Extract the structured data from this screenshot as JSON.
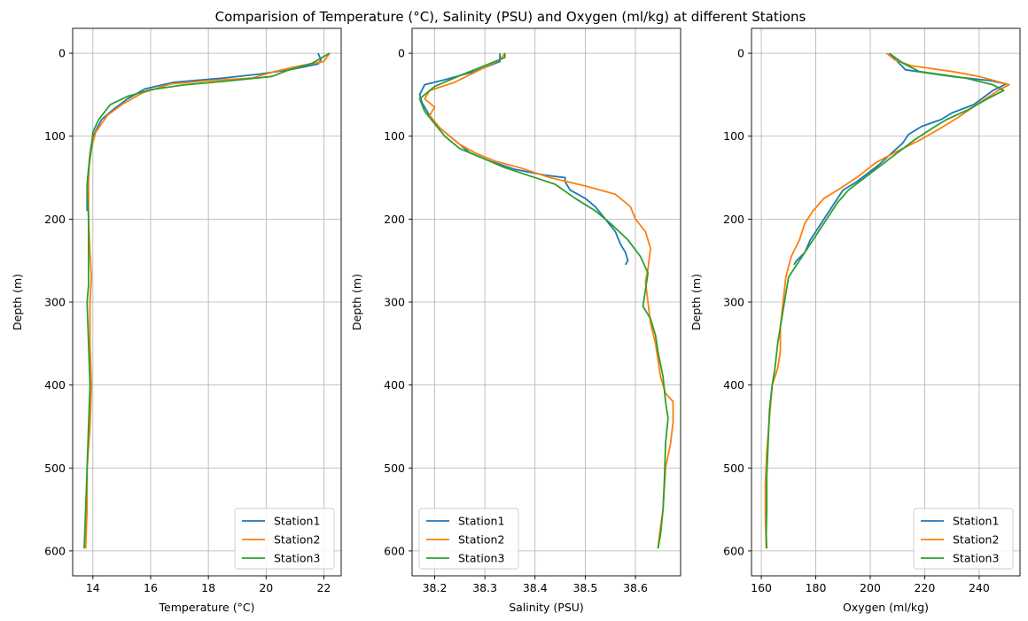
{
  "figure": {
    "title": "Comparision of Temperature (°C), Salinity (PSU) and Oxygen (ml/kg) at different Stations"
  },
  "chart_data": [
    {
      "type": "line",
      "orientation": "profile",
      "xlabel": "Temperature (°C)",
      "ylabel": "Depth (m)",
      "xlim": [
        13.3,
        22.6
      ],
      "ylim": [
        630,
        -30
      ],
      "y_inverted": true,
      "xticks": [
        14,
        16,
        18,
        20,
        22
      ],
      "xtick_labels": [
        "14",
        "16",
        "18",
        "20",
        "22"
      ],
      "yticks": [
        0,
        100,
        200,
        300,
        400,
        500,
        600
      ],
      "ytick_labels": [
        "0",
        "100",
        "200",
        "300",
        "400",
        "500",
        "600"
      ],
      "grid": true,
      "legend": "lower-right",
      "series": [
        {
          "name": "Station1",
          "color": "#1f77b4",
          "points": [
            [
              21.8,
              0
            ],
            [
              21.9,
              8
            ],
            [
              21.8,
              13
            ],
            [
              20.8,
              20
            ],
            [
              19.8,
              25
            ],
            [
              18.5,
              30
            ],
            [
              16.8,
              35
            ],
            [
              15.8,
              43
            ],
            [
              15.2,
              55
            ],
            [
              14.7,
              68
            ],
            [
              14.3,
              80
            ],
            [
              14.0,
              100
            ],
            [
              13.9,
              120
            ],
            [
              13.85,
              140
            ],
            [
              13.8,
              160
            ],
            [
              13.8,
              190
            ]
          ]
        },
        {
          "name": "Station2",
          "color": "#ff7f0e",
          "points": [
            [
              22.2,
              0
            ],
            [
              22.0,
              10
            ],
            [
              21.2,
              15
            ],
            [
              20.3,
              22
            ],
            [
              19.5,
              30
            ],
            [
              18.0,
              33
            ],
            [
              16.7,
              37
            ],
            [
              15.7,
              48
            ],
            [
              15.0,
              62
            ],
            [
              14.5,
              75
            ],
            [
              14.1,
              95
            ],
            [
              13.9,
              120
            ],
            [
              13.85,
              150
            ],
            [
              13.85,
              200
            ],
            [
              13.9,
              240
            ],
            [
              13.95,
              270
            ],
            [
              13.9,
              300
            ],
            [
              13.9,
              350
            ],
            [
              13.95,
              400
            ],
            [
              13.9,
              450
            ],
            [
              13.85,
              475
            ],
            [
              13.8,
              500
            ],
            [
              13.8,
              550
            ],
            [
              13.75,
              597
            ]
          ]
        },
        {
          "name": "Station3",
          "color": "#2ca02c",
          "points": [
            [
              22.2,
              0
            ],
            [
              21.6,
              12
            ],
            [
              20.8,
              20
            ],
            [
              20.2,
              28
            ],
            [
              18.8,
              33
            ],
            [
              17.2,
              38
            ],
            [
              16.0,
              44
            ],
            [
              15.2,
              52
            ],
            [
              14.6,
              62
            ],
            [
              14.2,
              80
            ],
            [
              14.0,
              95
            ],
            [
              13.95,
              115
            ],
            [
              13.85,
              140
            ],
            [
              13.8,
              160
            ],
            [
              13.85,
              200
            ],
            [
              13.85,
              250
            ],
            [
              13.85,
              280
            ],
            [
              13.8,
              300
            ],
            [
              13.85,
              350
            ],
            [
              13.9,
              400
            ],
            [
              13.85,
              450
            ],
            [
              13.8,
              500
            ],
            [
              13.75,
              550
            ],
            [
              13.7,
              597
            ]
          ]
        }
      ]
    },
    {
      "type": "line",
      "orientation": "profile",
      "xlabel": "Salinity (PSU)",
      "ylabel": "Depth (m)",
      "xlim": [
        38.155,
        38.69
      ],
      "ylim": [
        630,
        -30
      ],
      "y_inverted": true,
      "xticks": [
        38.2,
        38.3,
        38.4,
        38.5,
        38.6
      ],
      "xtick_labels": [
        "38.2",
        "38.3",
        "38.4",
        "38.5",
        "38.6"
      ],
      "yticks": [
        0,
        100,
        200,
        300,
        400,
        500,
        600
      ],
      "ytick_labels": [
        "0",
        "100",
        "200",
        "300",
        "400",
        "500",
        "600"
      ],
      "grid": true,
      "legend": "lower-left",
      "series": [
        {
          "name": "Station1",
          "color": "#1f77b4",
          "points": [
            [
              38.33,
              0
            ],
            [
              38.33,
              10
            ],
            [
              38.28,
              22
            ],
            [
              38.22,
              32
            ],
            [
              38.18,
              38
            ],
            [
              38.17,
              50
            ],
            [
              38.175,
              60
            ],
            [
              38.19,
              75
            ],
            [
              38.21,
              90
            ],
            [
              38.24,
              105
            ],
            [
              38.27,
              120
            ],
            [
              38.31,
              130
            ],
            [
              38.36,
              140
            ],
            [
              38.42,
              147
            ],
            [
              38.46,
              150
            ],
            [
              38.46,
              155
            ],
            [
              38.47,
              165
            ],
            [
              38.5,
              175
            ],
            [
              38.52,
              185
            ],
            [
              38.54,
              200
            ],
            [
              38.56,
              215
            ],
            [
              38.57,
              230
            ],
            [
              38.58,
              240
            ],
            [
              38.585,
              250
            ],
            [
              38.58,
              255
            ]
          ]
        },
        {
          "name": "Station2",
          "color": "#ff7f0e",
          "points": [
            [
              38.34,
              0
            ],
            [
              38.33,
              8
            ],
            [
              38.29,
              20
            ],
            [
              38.24,
              35
            ],
            [
              38.19,
              45
            ],
            [
              38.18,
              55
            ],
            [
              38.2,
              65
            ],
            [
              38.19,
              75
            ],
            [
              38.21,
              90
            ],
            [
              38.25,
              110
            ],
            [
              38.28,
              120
            ],
            [
              38.32,
              130
            ],
            [
              38.37,
              138
            ],
            [
              38.43,
              150
            ],
            [
              38.5,
              160
            ],
            [
              38.56,
              170
            ],
            [
              38.59,
              185
            ],
            [
              38.6,
              200
            ],
            [
              38.62,
              215
            ],
            [
              38.63,
              235
            ],
            [
              38.625,
              260
            ],
            [
              38.62,
              275
            ],
            [
              38.625,
              300
            ],
            [
              38.63,
              325
            ],
            [
              38.64,
              350
            ],
            [
              38.65,
              390
            ],
            [
              38.66,
              410
            ],
            [
              38.675,
              420
            ],
            [
              38.675,
              445
            ],
            [
              38.67,
              470
            ],
            [
              38.66,
              500
            ],
            [
              38.655,
              550
            ],
            [
              38.648,
              580
            ],
            [
              38.645,
              597
            ]
          ]
        },
        {
          "name": "Station3",
          "color": "#2ca02c",
          "points": [
            [
              38.34,
              0
            ],
            [
              38.34,
              5
            ],
            [
              38.3,
              15
            ],
            [
              38.25,
              27
            ],
            [
              38.2,
              40
            ],
            [
              38.17,
              55
            ],
            [
              38.18,
              70
            ],
            [
              38.2,
              85
            ],
            [
              38.22,
              100
            ],
            [
              38.25,
              115
            ],
            [
              38.29,
              125
            ],
            [
              38.34,
              138
            ],
            [
              38.39,
              148
            ],
            [
              38.44,
              158
            ],
            [
              38.48,
              175
            ],
            [
              38.52,
              190
            ],
            [
              38.55,
              205
            ],
            [
              38.585,
              225
            ],
            [
              38.61,
              245
            ],
            [
              38.625,
              265
            ],
            [
              38.62,
              285
            ],
            [
              38.615,
              305
            ],
            [
              38.63,
              320
            ],
            [
              38.64,
              340
            ],
            [
              38.645,
              360
            ],
            [
              38.655,
              390
            ],
            [
              38.66,
              420
            ],
            [
              38.665,
              440
            ],
            [
              38.66,
              470
            ],
            [
              38.658,
              510
            ],
            [
              38.655,
              550
            ],
            [
              38.65,
              580
            ],
            [
              38.645,
              597
            ]
          ]
        }
      ]
    },
    {
      "type": "line",
      "orientation": "profile",
      "xlabel": "Oxygen (ml/kg)",
      "ylabel": "Depth (m)",
      "xlim": [
        156.4,
        255
      ],
      "ylim": [
        630,
        -30
      ],
      "y_inverted": true,
      "xticks": [
        160,
        180,
        200,
        220,
        240
      ],
      "xtick_labels": [
        "160",
        "180",
        "200",
        "220",
        "240"
      ],
      "yticks": [
        0,
        100,
        200,
        300,
        400,
        500,
        600
      ],
      "ytick_labels": [
        "0",
        "100",
        "200",
        "300",
        "400",
        "500",
        "600"
      ],
      "grid": true,
      "legend": "lower-right",
      "series": [
        {
          "name": "Station1",
          "color": "#1f77b4",
          "points": [
            [
              207,
              0
            ],
            [
              210,
              10
            ],
            [
              213,
              20
            ],
            [
              230,
              28
            ],
            [
              244,
              33
            ],
            [
              250,
              37
            ],
            [
              245,
              45
            ],
            [
              238,
              62
            ],
            [
              230,
              72
            ],
            [
              226,
              80
            ],
            [
              219,
              88
            ],
            [
              214,
              98
            ],
            [
              212,
              108
            ],
            [
              208,
              120
            ],
            [
              203,
              135
            ],
            [
              199,
              145
            ],
            [
              195,
              155
            ],
            [
              190,
              165
            ],
            [
              187,
              180
            ],
            [
              184,
              195
            ],
            [
              181,
              210
            ],
            [
              178,
              225
            ],
            [
              176,
              240
            ],
            [
              173,
              250
            ],
            [
              172,
              255
            ]
          ]
        },
        {
          "name": "Station2",
          "color": "#ff7f0e",
          "points": [
            [
              206,
              0
            ],
            [
              209,
              8
            ],
            [
              215,
              15
            ],
            [
              230,
              22
            ],
            [
              240,
              28
            ],
            [
              251,
              38
            ],
            [
              247,
              45
            ],
            [
              240,
              60
            ],
            [
              232,
              78
            ],
            [
              225,
              92
            ],
            [
              218,
              105
            ],
            [
              210,
              118
            ],
            [
              202,
              132
            ],
            [
              195,
              150
            ],
            [
              188,
              165
            ],
            [
              183,
              175
            ],
            [
              179,
              190
            ],
            [
              176,
              205
            ],
            [
              174,
              225
            ],
            [
              171,
              245
            ],
            [
              169,
              270
            ],
            [
              168,
              300
            ],
            [
              167,
              330
            ],
            [
              167,
              360
            ],
            [
              166,
              380
            ],
            [
              164,
              400
            ],
            [
              163,
              440
            ],
            [
              162,
              480
            ],
            [
              161.5,
              520
            ],
            [
              161.5,
              560
            ],
            [
              161.8,
              597
            ]
          ]
        },
        {
          "name": "Station3",
          "color": "#2ca02c",
          "points": [
            [
              207,
              0
            ],
            [
              212,
              12
            ],
            [
              218,
              22
            ],
            [
              235,
              30
            ],
            [
              245,
              38
            ],
            [
              249,
              45
            ],
            [
              243,
              55
            ],
            [
              236,
              68
            ],
            [
              228,
              80
            ],
            [
              223,
              90
            ],
            [
              216,
              105
            ],
            [
              210,
              120
            ],
            [
              204,
              135
            ],
            [
              198,
              150
            ],
            [
              192,
              165
            ],
            [
              188,
              180
            ],
            [
              184,
              200
            ],
            [
              180,
              220
            ],
            [
              176,
              240
            ],
            [
              173,
              255
            ],
            [
              170,
              270
            ],
            [
              169,
              290
            ],
            [
              168,
              310
            ],
            [
              167,
              330
            ],
            [
              166,
              350
            ],
            [
              165,
              380
            ],
            [
              164,
              400
            ],
            [
              163,
              430
            ],
            [
              162.5,
              470
            ],
            [
              162,
              510
            ],
            [
              162,
              550
            ],
            [
              161.8,
              580
            ],
            [
              162,
              597
            ]
          ]
        }
      ]
    }
  ]
}
